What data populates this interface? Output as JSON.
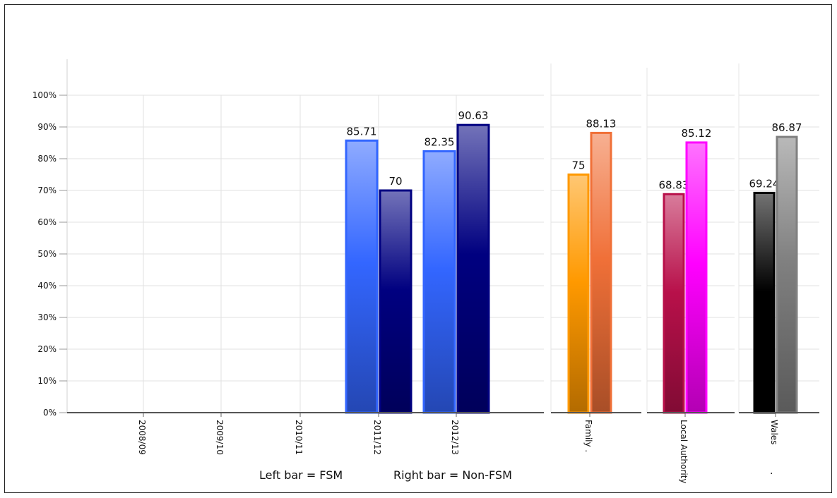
{
  "chart_data": [
    {
      "type": "bar",
      "categories": [
        "2008/09",
        "2009/10",
        "2010/11",
        "2011/12",
        "2012/13"
      ],
      "series": [
        {
          "values": [
            null,
            null,
            null,
            85.71,
            82.35
          ],
          "color": "#3366ff"
        },
        {
          "values": [
            null,
            null,
            null,
            70,
            90.63
          ],
          "color": "#000080"
        }
      ],
      "y_ticks": [
        "0%",
        "10%",
        "20%",
        "30%",
        "40%",
        "50%",
        "60%",
        "70%",
        "80%",
        "90%",
        "100%"
      ],
      "ylim": [
        0,
        100
      ],
      "grid": true
    },
    {
      "type": "bar",
      "categories": [
        "Family ."
      ],
      "series": [
        {
          "values": [
            75
          ],
          "color": "#ff9900"
        },
        {
          "values": [
            88.13
          ],
          "color": "#f07038"
        }
      ],
      "ylim": [
        0,
        100
      ],
      "grid": true
    },
    {
      "type": "bar",
      "categories": [
        "Local Authority"
      ],
      "series": [
        {
          "values": [
            68.83
          ],
          "color": "#b8104a"
        },
        {
          "values": [
            85.12
          ],
          "color": "#ff00ff"
        }
      ],
      "ylim": [
        0,
        100
      ],
      "grid": true
    },
    {
      "type": "bar",
      "categories": [
        "Wales"
      ],
      "series": [
        {
          "values": [
            69.24
          ],
          "color": "#000000"
        },
        {
          "values": [
            86.87
          ],
          "color": "#808080"
        }
      ],
      "ylim": [
        0,
        100
      ],
      "grid": true,
      "annotation": "."
    }
  ],
  "legend": {
    "left_bar": "Left bar = FSM",
    "right_bar": "Right bar = Non-FSM"
  }
}
